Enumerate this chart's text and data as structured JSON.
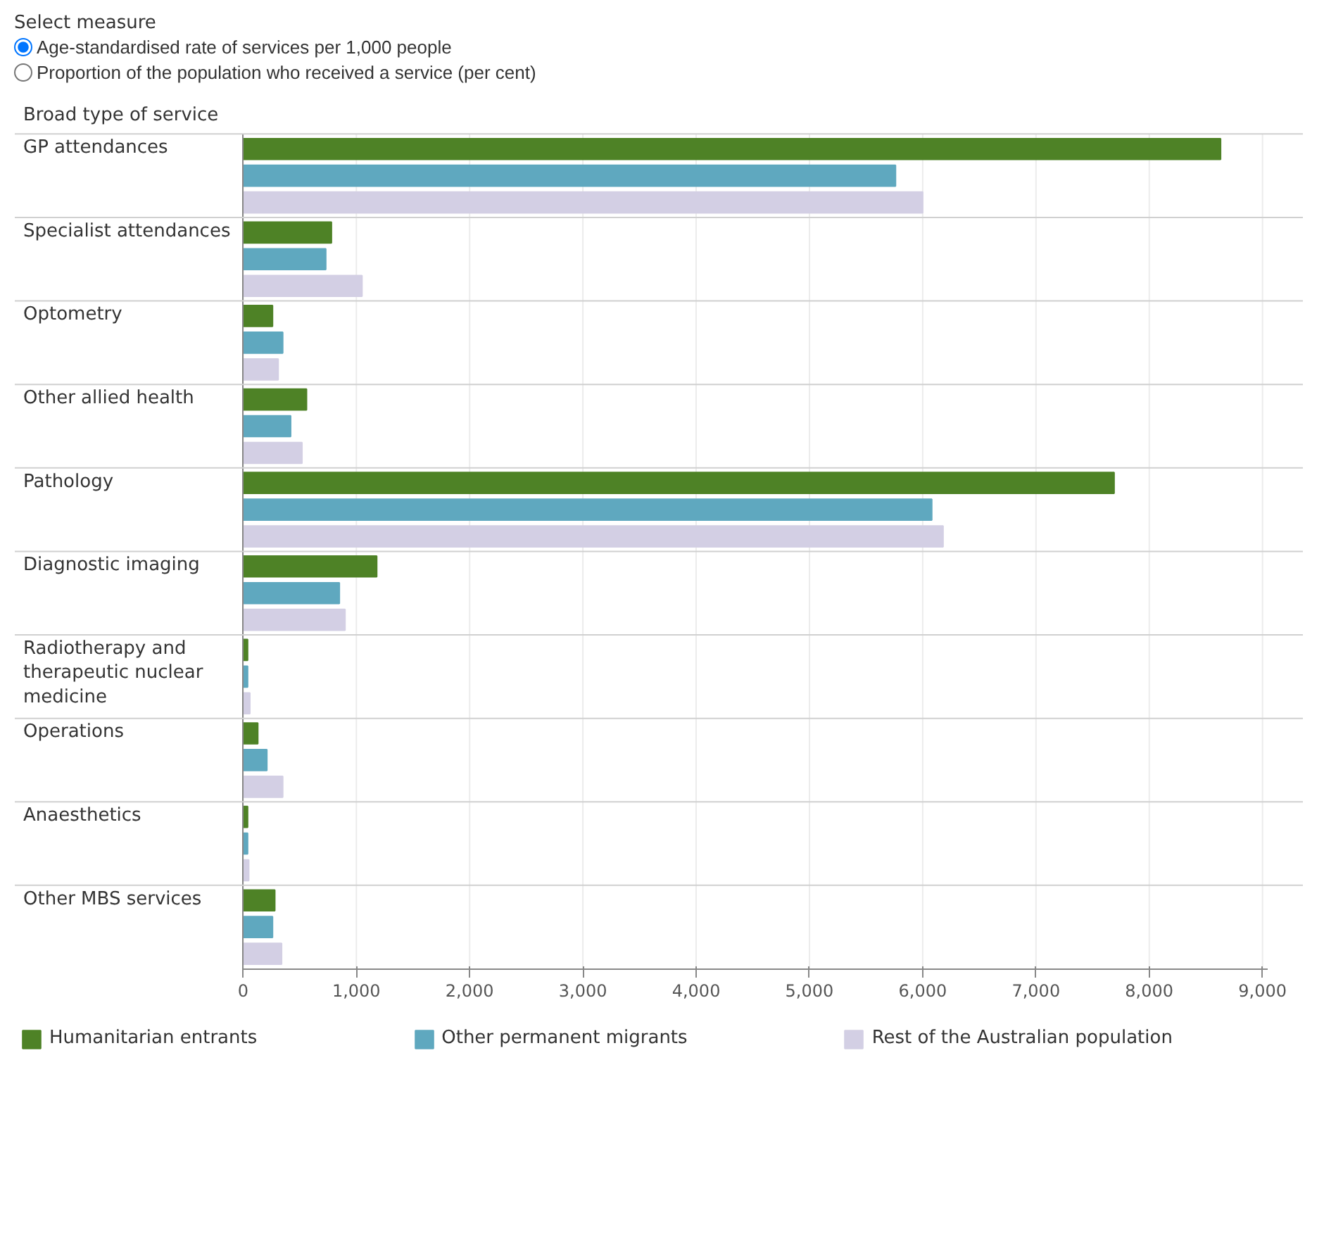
{
  "chart_data": {
    "type": "bar",
    "orientation": "horizontal",
    "ylabel": "Broad type of service",
    "annotations": [
      "Select measure",
      "Age-standardised rate of services per 1,000 people",
      "Proportion of the population who received a service (per cent)"
    ],
    "categories": [
      "GP attendances",
      "Specialist attendances",
      "Optometry",
      "Other allied health",
      "Pathology",
      "Diagnostic imaging",
      "Radiotherapy and therapeutic nuclear medicine",
      "Operations",
      "Anaesthetics",
      "Other MBS services"
    ],
    "series": [
      {
        "name": "Humanitarian entrants",
        "color": "#4e8226",
        "values": [
          8630,
          780,
          260,
          560,
          7690,
          1180,
          40,
          130,
          40,
          280
        ]
      },
      {
        "name": "Other permanent migrants",
        "color": "#5fa8bf",
        "values": [
          5760,
          730,
          350,
          420,
          6080,
          850,
          40,
          210,
          40,
          260
        ]
      },
      {
        "name": "Rest of the Australian population",
        "color": "#d3cfe4",
        "values": [
          6000,
          1050,
          310,
          520,
          6180,
          900,
          60,
          350,
          50,
          340
        ]
      }
    ],
    "xlim": [
      0,
      9040
    ],
    "xticks": [
      0,
      {
        "value": 1000,
        "label": "1,000"
      },
      {
        "value": 2000,
        "label": "2,000"
      },
      {
        "value": 3000,
        "label": "3,000"
      },
      {
        "value": 4000,
        "label": "4,000"
      },
      {
        "value": 5000,
        "label": "5,000"
      },
      {
        "value": 6000,
        "label": "6,000"
      },
      {
        "value": 7000,
        "label": "7,000"
      },
      {
        "value": 8000,
        "label": "8,000"
      },
      {
        "value": 9000,
        "label": "9,000"
      }
    ],
    "grid": "x",
    "legend": "bottom"
  }
}
